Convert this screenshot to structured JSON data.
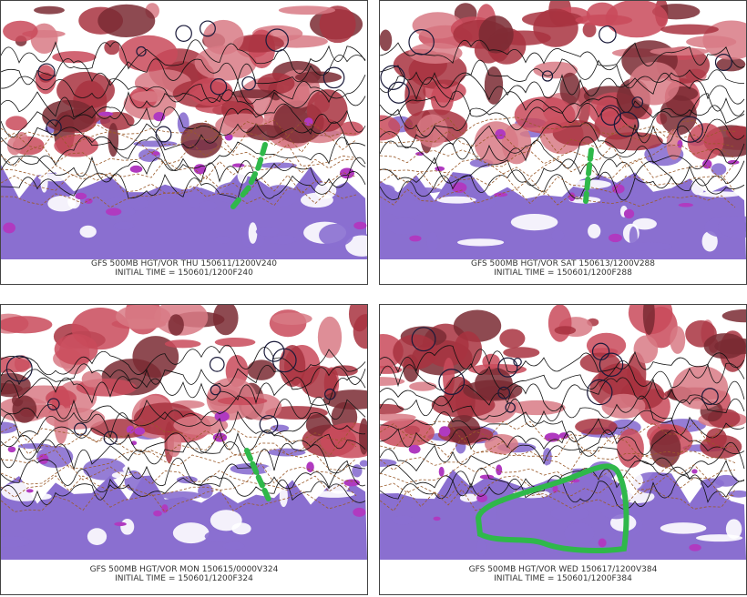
{
  "panels": [
    {
      "line1": "GFS 500MB HGT/VOR THU 150611/1200V240",
      "line2": "INITIAL TIME = 150601/1200F240"
    },
    {
      "line1": "GFS 500MB HGT/VOR SAT 150613/1200V288",
      "line2": "INITIAL TIME = 150601/1200F288"
    },
    {
      "line1": "GFS 500MB HGT/VOR MON 150615/0000V324",
      "line2": "INITIAL TIME = 150601/1200F324"
    },
    {
      "line1": "GFS 500MB HGT/VOR WED 150617/1200V384",
      "line2": "INITIAL TIME = 150601/1200F384"
    }
  ]
}
